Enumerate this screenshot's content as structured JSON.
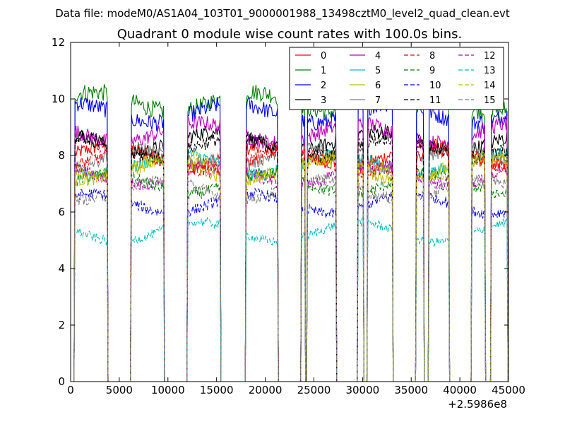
{
  "header": {
    "supertitle": "Data file: modeM0/AS1A04_103T01_9000001988_13498cztM0_level2_quad_clean.evt"
  },
  "chart_data": {
    "type": "line",
    "title": "Quadrant 0 module wise count rates with 100.0s bins.",
    "xlabel": "",
    "ylabel": "",
    "x_offset_label": "+2.5986e8",
    "xlim": [
      0,
      45000
    ],
    "ylim": [
      0,
      12
    ],
    "xticks": [
      0,
      5000,
      10000,
      15000,
      20000,
      25000,
      30000,
      35000,
      40000,
      45000
    ],
    "yticks": [
      0,
      2,
      4,
      6,
      8,
      10,
      12
    ],
    "grid": false,
    "legend": {
      "placement": "top-right",
      "columns": 4
    },
    "bin_width_s": 100,
    "good_time_intervals": [
      [
        400,
        3800
      ],
      [
        6200,
        9600
      ],
      [
        12000,
        15400
      ],
      [
        18000,
        21300
      ],
      [
        23700,
        24100
      ],
      [
        24300,
        27300
      ],
      [
        29500,
        30100
      ],
      [
        30500,
        33100
      ],
      [
        35500,
        36300
      ],
      [
        36800,
        38900
      ],
      [
        41200,
        42600
      ],
      [
        43200,
        44900
      ]
    ],
    "series": [
      {
        "name": "0",
        "color": "#ff0000",
        "style": "solid",
        "mean_rate": 8.0
      },
      {
        "name": "1",
        "color": "#008000",
        "style": "solid",
        "mean_rate": 9.9
      },
      {
        "name": "2",
        "color": "#0000ff",
        "style": "solid",
        "mean_rate": 9.5
      },
      {
        "name": "3",
        "color": "#000000",
        "style": "solid",
        "mean_rate": 8.5
      },
      {
        "name": "4",
        "color": "#bf00bf",
        "style": "solid",
        "mean_rate": 8.8
      },
      {
        "name": "5",
        "color": "#00bfbf",
        "style": "solid",
        "mean_rate": 7.7
      },
      {
        "name": "6",
        "color": "#bfbf00",
        "style": "solid",
        "mean_rate": 7.5
      },
      {
        "name": "7",
        "color": "#7f7f7f",
        "style": "solid",
        "mean_rate": 7.9
      },
      {
        "name": "8",
        "color": "#ff0000",
        "style": "dashed",
        "mean_rate": 7.8
      },
      {
        "name": "9",
        "color": "#008000",
        "style": "dashed",
        "mean_rate": 7.0
      },
      {
        "name": "10",
        "color": "#0000ff",
        "style": "dashed",
        "mean_rate": 6.3
      },
      {
        "name": "11",
        "color": "#000000",
        "style": "dashed",
        "mean_rate": 8.3
      },
      {
        "name": "12",
        "color": "#bf00bf",
        "style": "dashed",
        "mean_rate": 7.3
      },
      {
        "name": "13",
        "color": "#00bfbf",
        "style": "dashed",
        "mean_rate": 5.3
      },
      {
        "name": "14",
        "color": "#bfbf00",
        "style": "dashed",
        "mean_rate": 7.6
      },
      {
        "name": "15",
        "color": "#7f7f7f",
        "style": "dashed",
        "mean_rate": 6.8
      }
    ]
  }
}
